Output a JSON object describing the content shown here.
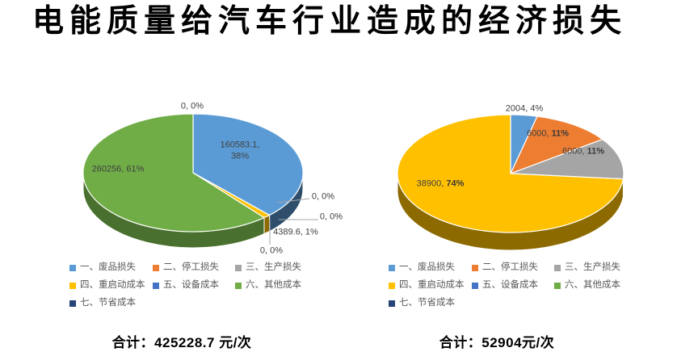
{
  "title": "电能质量给汽车行业造成的经济损失",
  "chart_data": [
    {
      "type": "pie",
      "variant": "3d",
      "title": "",
      "legend_position": "bottom",
      "categories": [
        "一、废品损失",
        "二、停工损失",
        "三、生产损失",
        "四、重启动成本",
        "五、设备成本",
        "六、其他成本",
        "七、节省成本"
      ],
      "values": [
        160583.1,
        0,
        0,
        4389.6,
        0,
        260256,
        0
      ],
      "percents": [
        "38%",
        "0%",
        "0%",
        "1%",
        "0%",
        "61%",
        "0%"
      ],
      "colors": [
        "#5B9BD5",
        "#ED7D31",
        "#A5A5A5",
        "#FFC000",
        "#4472C4",
        "#70AD47",
        "#264478"
      ],
      "data_labels": [
        "160583.1, 38%",
        "0, 0%",
        "0, 0%",
        "4389.6, 1%",
        "0, 0%",
        "260256, 61%",
        "0, 0%"
      ],
      "total": 425228.7,
      "total_label": "合计：425228.7 元/次"
    },
    {
      "type": "pie",
      "variant": "3d",
      "title": "",
      "legend_position": "bottom",
      "categories": [
        "一、废品损失",
        "二、停工损失",
        "三、生产损失",
        "四、重启动成本",
        "五、设备成本",
        "六、其他成本",
        "七、节省成本"
      ],
      "values": [
        2004,
        6000,
        6000,
        38900,
        0,
        0,
        0
      ],
      "percents": [
        "4%",
        "11%",
        "11%",
        "74%",
        "0%",
        "0%",
        "0%"
      ],
      "colors": [
        "#5B9BD5",
        "#ED7D31",
        "#A5A5A5",
        "#FFC000",
        "#4472C4",
        "#70AD47",
        "#264478"
      ],
      "data_labels": [
        "2004, 4%",
        "6000, 11%",
        "6000, 11%",
        "38900, 74%",
        null,
        null,
        null
      ],
      "total": 52904,
      "total_label": "合计：52904元/次"
    }
  ]
}
